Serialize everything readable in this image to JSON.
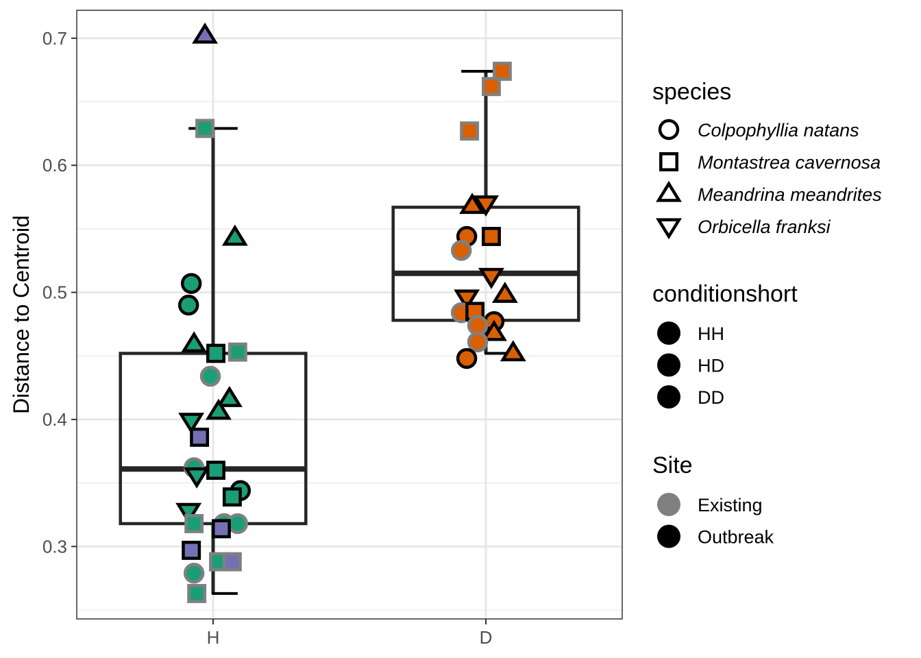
{
  "chart_data": {
    "type": "box",
    "xlabel": "",
    "ylabel": "Distance to Centroid",
    "categories": [
      "H",
      "D"
    ],
    "ylim": [
      0.243,
      0.722
    ],
    "yticks": [
      0.3,
      0.4,
      0.5,
      0.6,
      0.7
    ],
    "ytick_labels": [
      "0.3",
      "0.4",
      "0.5",
      "0.6",
      "0.7"
    ],
    "grid": true,
    "legend_placement": "right",
    "colors": {
      "HH": "#1b9e77",
      "HD": "#7570b3",
      "DD": "#d95f02",
      "Existing": "#808080",
      "Outbreak": "#000000",
      "box": "#262626"
    },
    "boxes": [
      {
        "category": "H",
        "whisker_low": 0.263,
        "q1": 0.318,
        "median": 0.361,
        "q3": 0.452,
        "whisker_high": 0.629
      },
      {
        "category": "D",
        "whisker_low": 0.452,
        "q1": 0.478,
        "median": 0.515,
        "q3": 0.567,
        "whisker_high": 0.674
      }
    ],
    "points": [
      {
        "cat": "H",
        "jitter": -0.03,
        "y": 0.702,
        "species": "Meandrina meandrites",
        "condition": "HD",
        "site": "Outbreak"
      },
      {
        "cat": "H",
        "jitter": -0.03,
        "y": 0.629,
        "species": "Montastrea cavernosa",
        "condition": "HH",
        "site": "Existing"
      },
      {
        "cat": "H",
        "jitter": 0.08,
        "y": 0.543,
        "species": "Meandrina meandrites",
        "condition": "HH",
        "site": "Outbreak"
      },
      {
        "cat": "H",
        "jitter": -0.08,
        "y": 0.507,
        "species": "Colpophyllia natans",
        "condition": "HH",
        "site": "Outbreak"
      },
      {
        "cat": "H",
        "jitter": -0.09,
        "y": 0.49,
        "species": "Colpophyllia natans",
        "condition": "HH",
        "site": "Outbreak"
      },
      {
        "cat": "H",
        "jitter": -0.07,
        "y": 0.459,
        "species": "Meandrina meandrites",
        "condition": "HH",
        "site": "Outbreak"
      },
      {
        "cat": "H",
        "jitter": 0.01,
        "y": 0.452,
        "species": "Montastrea cavernosa",
        "condition": "HH",
        "site": "Outbreak"
      },
      {
        "cat": "H",
        "jitter": 0.09,
        "y": 0.453,
        "species": "Montastrea cavernosa",
        "condition": "HH",
        "site": "Existing"
      },
      {
        "cat": "H",
        "jitter": -0.01,
        "y": 0.434,
        "species": "Colpophyllia natans",
        "condition": "HH",
        "site": "Existing"
      },
      {
        "cat": "H",
        "jitter": 0.06,
        "y": 0.416,
        "species": "Meandrina meandrites",
        "condition": "HH",
        "site": "Outbreak"
      },
      {
        "cat": "H",
        "jitter": 0.02,
        "y": 0.406,
        "species": "Meandrina meandrites",
        "condition": "HH",
        "site": "Outbreak"
      },
      {
        "cat": "H",
        "jitter": -0.08,
        "y": 0.399,
        "species": "Orbicella franksi",
        "condition": "HH",
        "site": "Outbreak"
      },
      {
        "cat": "H",
        "jitter": -0.05,
        "y": 0.386,
        "species": "Montastrea cavernosa",
        "condition": "HD",
        "site": "Outbreak"
      },
      {
        "cat": "H",
        "jitter": -0.07,
        "y": 0.362,
        "species": "Colpophyllia natans",
        "condition": "HH",
        "site": "Existing"
      },
      {
        "cat": "H",
        "jitter": 0.01,
        "y": 0.36,
        "species": "Montastrea cavernosa",
        "condition": "HH",
        "site": "Outbreak"
      },
      {
        "cat": "H",
        "jitter": -0.06,
        "y": 0.356,
        "species": "Orbicella franksi",
        "condition": "HH",
        "site": "Outbreak"
      },
      {
        "cat": "H",
        "jitter": 0.1,
        "y": 0.344,
        "species": "Colpophyllia natans",
        "condition": "HH",
        "site": "Outbreak"
      },
      {
        "cat": "H",
        "jitter": 0.07,
        "y": 0.339,
        "species": "Montastrea cavernosa",
        "condition": "HH",
        "site": "Outbreak"
      },
      {
        "cat": "H",
        "jitter": -0.09,
        "y": 0.328,
        "species": "Orbicella franksi",
        "condition": "HH",
        "site": "Outbreak"
      },
      {
        "cat": "H",
        "jitter": -0.07,
        "y": 0.318,
        "species": "Montastrea cavernosa",
        "condition": "HH",
        "site": "Existing"
      },
      {
        "cat": "H",
        "jitter": 0.04,
        "y": 0.318,
        "species": "Colpophyllia natans",
        "condition": "HH",
        "site": "Existing"
      },
      {
        "cat": "H",
        "jitter": 0.09,
        "y": 0.318,
        "species": "Colpophyllia natans",
        "condition": "HH",
        "site": "Existing"
      },
      {
        "cat": "H",
        "jitter": 0.03,
        "y": 0.314,
        "species": "Montastrea cavernosa",
        "condition": "HD",
        "site": "Outbreak"
      },
      {
        "cat": "H",
        "jitter": -0.08,
        "y": 0.297,
        "species": "Montastrea cavernosa",
        "condition": "HD",
        "site": "Outbreak"
      },
      {
        "cat": "H",
        "jitter": 0.02,
        "y": 0.288,
        "species": "Montastrea cavernosa",
        "condition": "HH",
        "site": "Existing"
      },
      {
        "cat": "H",
        "jitter": 0.07,
        "y": 0.288,
        "species": "Montastrea cavernosa",
        "condition": "HD",
        "site": "Existing"
      },
      {
        "cat": "H",
        "jitter": -0.07,
        "y": 0.279,
        "species": "Colpophyllia natans",
        "condition": "HH",
        "site": "Existing"
      },
      {
        "cat": "H",
        "jitter": -0.06,
        "y": 0.263,
        "species": "Montastrea cavernosa",
        "condition": "HH",
        "site": "Existing"
      },
      {
        "cat": "D",
        "jitter": 0.06,
        "y": 0.674,
        "species": "Montastrea cavernosa",
        "condition": "DD",
        "site": "Existing"
      },
      {
        "cat": "D",
        "jitter": 0.02,
        "y": 0.662,
        "species": "Montastrea cavernosa",
        "condition": "DD",
        "site": "Existing"
      },
      {
        "cat": "D",
        "jitter": -0.06,
        "y": 0.627,
        "species": "Montastrea cavernosa",
        "condition": "DD",
        "site": "Existing"
      },
      {
        "cat": "D",
        "jitter": -0.05,
        "y": 0.568,
        "species": "Meandrina meandrites",
        "condition": "DD",
        "site": "Outbreak"
      },
      {
        "cat": "D",
        "jitter": 0.0,
        "y": 0.57,
        "species": "Orbicella franksi",
        "condition": "DD",
        "site": "Outbreak"
      },
      {
        "cat": "D",
        "jitter": 0.02,
        "y": 0.544,
        "species": "Montastrea cavernosa",
        "condition": "DD",
        "site": "Outbreak"
      },
      {
        "cat": "D",
        "jitter": -0.07,
        "y": 0.544,
        "species": "Colpophyllia natans",
        "condition": "DD",
        "site": "Outbreak"
      },
      {
        "cat": "D",
        "jitter": -0.09,
        "y": 0.533,
        "species": "Colpophyllia natans",
        "condition": "DD",
        "site": "Existing"
      },
      {
        "cat": "D",
        "jitter": 0.02,
        "y": 0.513,
        "species": "Orbicella franksi",
        "condition": "DD",
        "site": "Outbreak"
      },
      {
        "cat": "D",
        "jitter": 0.07,
        "y": 0.498,
        "species": "Meandrina meandrites",
        "condition": "DD",
        "site": "Outbreak"
      },
      {
        "cat": "D",
        "jitter": -0.07,
        "y": 0.496,
        "species": "Orbicella franksi",
        "condition": "DD",
        "site": "Outbreak"
      },
      {
        "cat": "D",
        "jitter": -0.09,
        "y": 0.484,
        "species": "Colpophyllia natans",
        "condition": "DD",
        "site": "Existing"
      },
      {
        "cat": "D",
        "jitter": -0.04,
        "y": 0.485,
        "species": "Montastrea cavernosa",
        "condition": "DD",
        "site": "Outbreak"
      },
      {
        "cat": "D",
        "jitter": 0.03,
        "y": 0.477,
        "species": "Colpophyllia natans",
        "condition": "DD",
        "site": "Outbreak"
      },
      {
        "cat": "D",
        "jitter": -0.03,
        "y": 0.474,
        "species": "Colpophyllia natans",
        "condition": "DD",
        "site": "Existing"
      },
      {
        "cat": "D",
        "jitter": 0.03,
        "y": 0.468,
        "species": "Meandrina meandrites",
        "condition": "DD",
        "site": "Outbreak"
      },
      {
        "cat": "D",
        "jitter": -0.03,
        "y": 0.461,
        "species": "Colpophyllia natans",
        "condition": "DD",
        "site": "Existing"
      },
      {
        "cat": "D",
        "jitter": 0.1,
        "y": 0.452,
        "species": "Meandrina meandrites",
        "condition": "DD",
        "site": "Outbreak"
      },
      {
        "cat": "D",
        "jitter": -0.07,
        "y": 0.448,
        "species": "Colpophyllia natans",
        "condition": "DD",
        "site": "Outbreak"
      }
    ],
    "legends": [
      {
        "title": "species",
        "kind": "shape",
        "items": [
          {
            "label": "Colpophyllia natans",
            "shape": "circle"
          },
          {
            "label": "Montastrea cavernosa",
            "shape": "square"
          },
          {
            "label": "Meandrina meandrites",
            "shape": "triangle-up"
          },
          {
            "label": "Orbicella franksi",
            "shape": "triangle-down"
          }
        ]
      },
      {
        "title": "conditionshort",
        "kind": "fill",
        "items": [
          {
            "label": "HH",
            "color": "#000000"
          },
          {
            "label": "HD",
            "color": "#000000"
          },
          {
            "label": "DD",
            "color": "#000000"
          }
        ]
      },
      {
        "title": "Site",
        "kind": "fill",
        "items": [
          {
            "label": "Existing",
            "color": "#808080"
          },
          {
            "label": "Outbreak",
            "color": "#000000"
          }
        ]
      }
    ]
  }
}
